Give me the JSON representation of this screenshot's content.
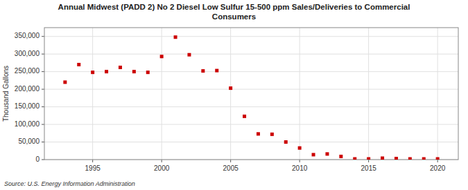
{
  "chart_data": {
    "type": "scatter",
    "title": "Annual Midwest (PADD 2) No 2 Diesel Low Sulfur 15-500 ppm Sales/Deliveries to Commercial\nConsumers",
    "y_label": "Thousand Gallons",
    "annotations": [
      "Source: U.S. Energy Information Administration"
    ],
    "x": [
      1993,
      1994,
      1995,
      1996,
      1997,
      1998,
      1999,
      2000,
      2001,
      2002,
      2003,
      2004,
      2005,
      2006,
      2007,
      2008,
      2009,
      2010,
      2011,
      2012,
      2013,
      2014,
      2015,
      2016,
      2017,
      2018,
      2019,
      2020
    ],
    "values": [
      220000,
      270000,
      248000,
      250000,
      262000,
      250000,
      248000,
      293000,
      348000,
      298000,
      252000,
      253000,
      203000,
      123000,
      73000,
      72000,
      50000,
      33000,
      14000,
      16000,
      9000,
      2000,
      2000,
      4000,
      3000,
      2000,
      2000,
      2000
    ],
    "color": "#cc0000",
    "marker": "square",
    "xlim": [
      1991.5,
      2021.5
    ],
    "ylim": [
      0,
      375000
    ],
    "xticks": [
      1995,
      2000,
      2005,
      2010,
      2015,
      2020
    ],
    "yticks": [
      0,
      {
        "value": 50000,
        "label": "50,000"
      },
      {
        "value": 100000,
        "label": "100,000"
      },
      {
        "value": 150000,
        "label": "150,000"
      },
      {
        "value": 200000,
        "label": "200,000"
      },
      {
        "value": 250000,
        "label": "250,000"
      },
      {
        "value": 300000,
        "label": "300,000"
      },
      {
        "value": 350000,
        "label": "350,000"
      }
    ],
    "grid": true
  }
}
